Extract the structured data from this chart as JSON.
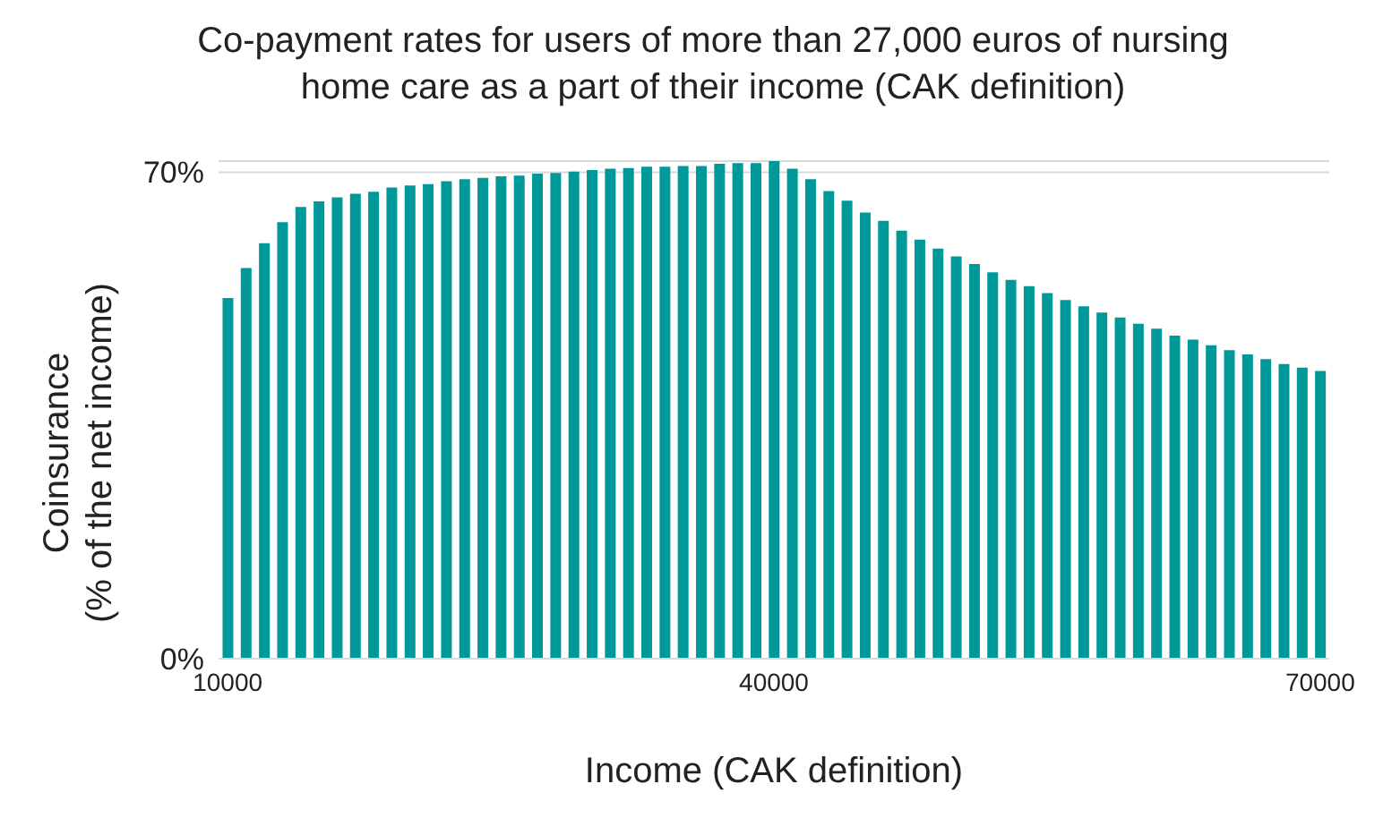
{
  "chart_data": {
    "type": "bar",
    "title": "Co-payment rates for users of more than 27,000 euros of nursing home care as a part of their income (CAK definition)",
    "xlabel": "Income (CAK definition)",
    "ylabel": "Coinsurance\n(% of the net income)",
    "categories": [
      "10000",
      null,
      null,
      null,
      null,
      null,
      null,
      null,
      null,
      null,
      null,
      null,
      null,
      null,
      null,
      null,
      null,
      null,
      null,
      null,
      null,
      null,
      null,
      null,
      null,
      null,
      null,
      null,
      null,
      null,
      "40000",
      null,
      null,
      null,
      null,
      null,
      null,
      null,
      null,
      null,
      null,
      null,
      null,
      null,
      null,
      null,
      null,
      null,
      null,
      null,
      null,
      null,
      null,
      null,
      null,
      null,
      null,
      null,
      null,
      null,
      "70000"
    ],
    "values": [
      51.9,
      56.2,
      59.8,
      62.8,
      65.0,
      65.8,
      66.4,
      66.9,
      67.2,
      67.8,
      68.1,
      68.3,
      68.7,
      69.0,
      69.2,
      69.4,
      69.5,
      69.8,
      69.9,
      70.1,
      70.3,
      70.5,
      70.6,
      70.8,
      70.8,
      70.9,
      70.9,
      71.2,
      71.3,
      71.3,
      71.6,
      70.5,
      69.0,
      67.3,
      65.9,
      64.2,
      63.0,
      61.6,
      60.3,
      59.0,
      57.9,
      56.8,
      55.6,
      54.5,
      53.6,
      52.6,
      51.6,
      50.7,
      49.8,
      49.1,
      48.2,
      47.5,
      46.5,
      45.9,
      45.1,
      44.4,
      43.8,
      43.1,
      42.4,
      41.9,
      41.4
    ],
    "color": "#009999",
    "ylim": [
      0,
      71.6
    ],
    "yticks": [
      {
        "value": 0,
        "label": "0%"
      },
      {
        "value": 70,
        "label": "70%"
      }
    ],
    "grid": "y"
  }
}
